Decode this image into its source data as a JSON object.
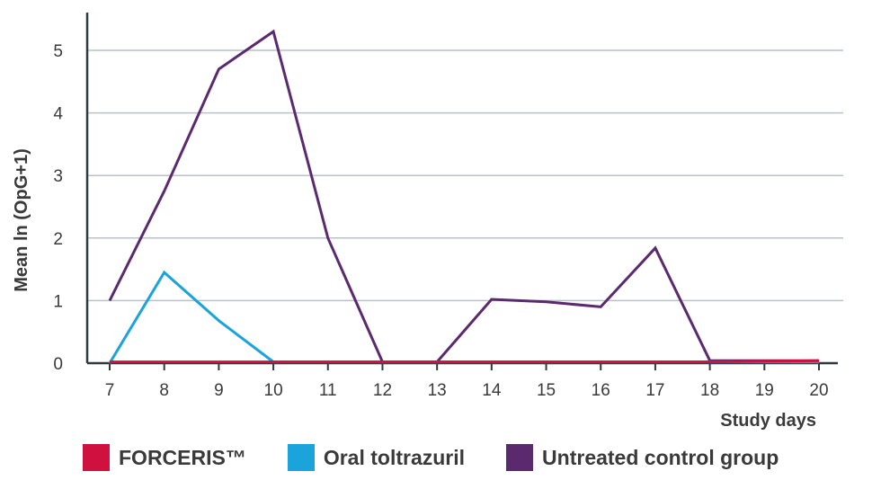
{
  "chart_data": {
    "type": "line",
    "title": "",
    "xlabel": "Study days",
    "ylabel": "Mean ln (OpG+1)",
    "x": [
      7,
      8,
      9,
      10,
      11,
      12,
      13,
      14,
      15,
      16,
      17,
      18,
      19,
      20
    ],
    "y_ticks": [
      0,
      1,
      2,
      3,
      4,
      5
    ],
    "ylim": [
      0,
      5.6
    ],
    "grid": true,
    "legend_position": "bottom",
    "series": [
      {
        "name": "Untreated control group",
        "color": "#5b2a6e",
        "values": [
          1.0,
          2.75,
          4.7,
          5.3,
          2.0,
          0.02,
          0.02,
          1.02,
          0.98,
          0.9,
          1.84,
          0.04,
          0.04,
          0.04
        ]
      },
      {
        "name": "Oral toltrazuril",
        "color": "#1ba3dc",
        "values": [
          0.0,
          1.45,
          0.68,
          0.02,
          0.02,
          0.02,
          0.02,
          0.02,
          0.02,
          0.02,
          0.02,
          0.02,
          0.02,
          0.02
        ]
      },
      {
        "name": "FORCERIS™",
        "color": "#d0103f",
        "values": [
          0.02,
          0.02,
          0.02,
          0.02,
          0.02,
          0.02,
          0.02,
          0.02,
          0.02,
          0.02,
          0.02,
          0.02,
          0.03,
          0.04
        ]
      }
    ]
  },
  "legend": [
    {
      "label": "FORCERIS™",
      "color": "#d0103f"
    },
    {
      "label": "Oral toltrazuril",
      "color": "#1ba3dc"
    },
    {
      "label": "Untreated control group",
      "color": "#5b2a6e"
    }
  ]
}
